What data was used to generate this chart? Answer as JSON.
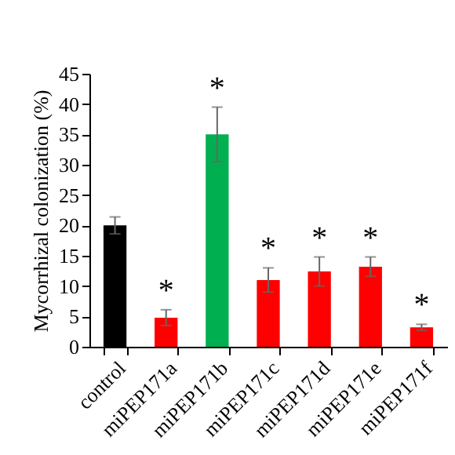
{
  "chart_data": {
    "type": "bar",
    "ylabel": "Mycorrhizal colonization (%)",
    "categories": [
      "control",
      "miPEP171a",
      "miPEP171b",
      "miPEP171c",
      "miPEP171d",
      "miPEP171e",
      "miPEP171f"
    ],
    "values": [
      20,
      4.8,
      35,
      11,
      12.4,
      13.2,
      3.2
    ],
    "errors": [
      1.4,
      1.3,
      4.5,
      2,
      2.4,
      1.6,
      0.5
    ],
    "colors": [
      "#000000",
      "#ff0000",
      "#00b050",
      "#ff0000",
      "#ff0000",
      "#ff0000",
      "#ff0000"
    ],
    "ylim": [
      0,
      45
    ],
    "yticks": [
      0,
      5,
      10,
      15,
      20,
      25,
      30,
      35,
      40,
      45
    ],
    "grid": false,
    "annotations": [
      {
        "text": "*",
        "x": "miPEP171a",
        "y": 4.8
      },
      {
        "text": "*",
        "x": "miPEP171b",
        "y": 35
      },
      {
        "text": "*",
        "x": "miPEP171c",
        "y": 11
      },
      {
        "text": "*",
        "x": "miPEP171d",
        "y": 12.4
      },
      {
        "text": "*",
        "x": "miPEP171e",
        "y": 13.2
      },
      {
        "text": "*",
        "x": "miPEP171f",
        "y": 3.2
      }
    ]
  }
}
